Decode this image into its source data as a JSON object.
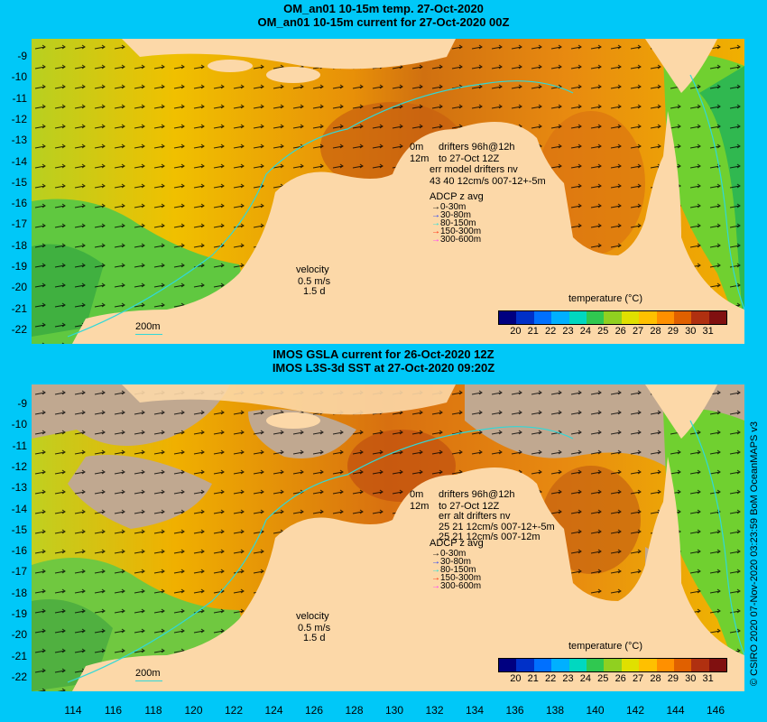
{
  "top_panel": {
    "title_line1": "OM_an01 10-15m temp. 27-Oct-2020",
    "title_line2": "OM_an01 10-15m current for 27-Oct-2020 00Z",
    "legend_line1": "0m",
    "legend_line1b": "drifters 96h@12h",
    "legend_line2": "12m",
    "legend_line2b": "to 27-Oct 12Z",
    "legend_line3": "err model drifters nv",
    "legend_line4": "43 40 12cm/s 007-12+-5m",
    "adcp_title": "ADCP z avg",
    "adcp_items": [
      {
        "label": "0-30m",
        "color": "#000000"
      },
      {
        "label": "30-80m",
        "color": "#1030ff"
      },
      {
        "label": "80-150m",
        "color": "#10e0e0"
      },
      {
        "label": "150-300m",
        "color": "#ff2000"
      },
      {
        "label": "300-600m",
        "color": "#ff30ff"
      }
    ],
    "velocity_label": "velocity",
    "velocity_value": "0.5 m/s",
    "velocity_time": "1.5 d",
    "scale_label": "200m",
    "colorbar_title": "temperature (°C)"
  },
  "bottom_panel": {
    "title_line1": "IMOS GSLA current for 26-Oct-2020 12Z",
    "title_line2": "IMOS L3S-3d SST at 27-Oct-2020 09:20Z",
    "legend_line1": "0m",
    "legend_line1b": "drifters 96h@12h",
    "legend_line2": "12m",
    "legend_line2b": "to 27-Oct 12Z",
    "legend_line3": "err alt drifters nv",
    "legend_line4": "25 21 12cm/s 007-12+-5m",
    "legend_line5": "25 21 12cm/s 007-12m",
    "adcp_title": "ADCP z avg",
    "adcp_items": [
      {
        "label": "0-30m",
        "color": "#000000"
      },
      {
        "label": "30-80m",
        "color": "#1030ff"
      },
      {
        "label": "80-150m",
        "color": "#10e0e0"
      },
      {
        "label": "150-300m",
        "color": "#ff2000"
      },
      {
        "label": "300-600m",
        "color": "#ff30ff"
      }
    ],
    "velocity_label": "velocity",
    "velocity_value": "0.5 m/s",
    "velocity_time": "1.5 d",
    "scale_label": "200m",
    "colorbar_title": "temperature (°C)"
  },
  "colorbar_ticks": [
    "20",
    "21",
    "22",
    "23",
    "24",
    "25",
    "26",
    "27",
    "28",
    "29",
    "30",
    "31"
  ],
  "colorbar_colors": [
    "#000080",
    "#0030c8",
    "#0070ff",
    "#00b0ff",
    "#00d8c0",
    "#30c850",
    "#90d020",
    "#e0e000",
    "#ffc000",
    "#ff9000",
    "#e06000",
    "#b03010",
    "#801010"
  ],
  "y_ticks": [
    "-9",
    "-10",
    "-11",
    "-12",
    "-13",
    "-14",
    "-15",
    "-16",
    "-17",
    "-18",
    "-19",
    "-20",
    "-21",
    "-22"
  ],
  "x_ticks": [
    "114",
    "116",
    "118",
    "120",
    "122",
    "124",
    "126",
    "128",
    "130",
    "132",
    "134",
    "136",
    "138",
    "140",
    "142",
    "144",
    "146"
  ],
  "credit": "© CSIRO 2020  07-Nov-2020 03:23:59 BoM OceanMAPS v3",
  "colors": {
    "frame": "#00c8f8",
    "land": "#fcd8a8",
    "warm": "#e88a10",
    "cool": "#60d040",
    "nodata": "#c0a890"
  }
}
